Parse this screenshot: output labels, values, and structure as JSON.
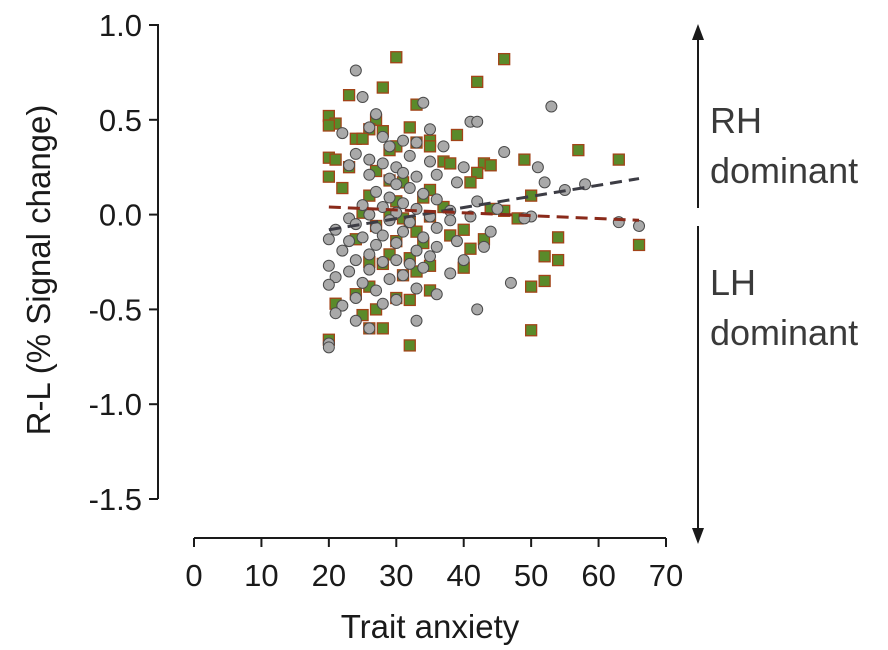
{
  "chart_data": {
    "type": "scatter",
    "title": "",
    "xlabel": "Trait anxiety",
    "ylabel": "R-L (% Signal change)",
    "xlim": [
      0,
      70
    ],
    "ylim": [
      -1.5,
      1.0
    ],
    "xticks": [
      "0",
      "10",
      "20",
      "30",
      "40",
      "50",
      "60",
      "70"
    ],
    "yticks": [
      "1.0",
      "0.5",
      "0.0",
      "-0.5",
      "-1.0",
      "-1.5"
    ],
    "grid": false,
    "annotations": {
      "upper": [
        "RH",
        "dominant"
      ],
      "lower": [
        "LH",
        "dominant"
      ]
    },
    "series": [
      {
        "marker": "circle",
        "color": "#a9a9a9",
        "edge_color": "#4a4a4a",
        "trend": {
          "x": [
            20,
            66
          ],
          "y": [
            -0.08,
            0.19
          ],
          "color": "#3c3c44",
          "style": "dashed"
        },
        "points": [
          [
            24,
            0.76
          ],
          [
            25,
            0.62
          ],
          [
            34,
            0.59
          ],
          [
            53,
            0.57
          ],
          [
            27,
            0.53
          ],
          [
            41,
            0.49
          ],
          [
            42,
            0.49
          ],
          [
            26,
            0.46
          ],
          [
            35,
            0.45
          ],
          [
            22,
            0.43
          ],
          [
            28,
            0.41
          ],
          [
            31,
            0.39
          ],
          [
            33,
            0.38
          ],
          [
            29,
            0.36
          ],
          [
            37,
            0.36
          ],
          [
            46,
            0.33
          ],
          [
            24,
            0.32
          ],
          [
            32,
            0.31
          ],
          [
            26,
            0.29
          ],
          [
            35,
            0.28
          ],
          [
            28,
            0.27
          ],
          [
            23,
            0.26
          ],
          [
            30,
            0.25
          ],
          [
            40,
            0.25
          ],
          [
            51,
            0.25
          ],
          [
            31,
            0.22
          ],
          [
            26,
            0.21
          ],
          [
            36,
            0.21
          ],
          [
            33,
            0.2
          ],
          [
            29,
            0.19
          ],
          [
            39,
            0.17
          ],
          [
            52,
            0.17
          ],
          [
            30,
            0.16
          ],
          [
            58,
            0.16
          ],
          [
            32,
            0.14
          ],
          [
            55,
            0.13
          ],
          [
            27,
            0.12
          ],
          [
            34,
            0.11
          ],
          [
            29,
            0.09
          ],
          [
            36,
            0.08
          ],
          [
            42,
            0.07
          ],
          [
            31,
            0.06
          ],
          [
            25,
            0.05
          ],
          [
            28,
            0.04
          ],
          [
            33,
            0.03
          ],
          [
            45,
            0.03
          ],
          [
            38,
            0.02
          ],
          [
            30,
            0.01
          ],
          [
            26,
            0.0
          ],
          [
            35,
            -0.01
          ],
          [
            41,
            -0.01
          ],
          [
            50,
            -0.01
          ],
          [
            23,
            -0.02
          ],
          [
            49,
            -0.02
          ],
          [
            29,
            -0.03
          ],
          [
            38,
            -0.03
          ],
          [
            32,
            -0.04
          ],
          [
            24,
            -0.05
          ],
          [
            63,
            -0.04
          ],
          [
            66,
            -0.06
          ],
          [
            27,
            -0.07
          ],
          [
            36,
            -0.07
          ],
          [
            21,
            -0.08
          ],
          [
            31,
            -0.09
          ],
          [
            44,
            -0.09
          ],
          [
            28,
            -0.11
          ],
          [
            25,
            -0.12
          ],
          [
            34,
            -0.12
          ],
          [
            20,
            -0.13
          ],
          [
            23,
            -0.14
          ],
          [
            39,
            -0.14
          ],
          [
            30,
            -0.15
          ],
          [
            27,
            -0.16
          ],
          [
            36,
            -0.17
          ],
          [
            43,
            -0.17
          ],
          [
            22,
            -0.19
          ],
          [
            33,
            -0.19
          ],
          [
            26,
            -0.21
          ],
          [
            35,
            -0.22
          ],
          [
            24,
            -0.24
          ],
          [
            30,
            -0.24
          ],
          [
            40,
            -0.24
          ],
          [
            28,
            -0.25
          ],
          [
            32,
            -0.26
          ],
          [
            20,
            -0.27
          ],
          [
            34,
            -0.28
          ],
          [
            26,
            -0.29
          ],
          [
            23,
            -0.3
          ],
          [
            38,
            -0.31
          ],
          [
            31,
            -0.32
          ],
          [
            21,
            -0.33
          ],
          [
            29,
            -0.34
          ],
          [
            25,
            -0.36
          ],
          [
            47,
            -0.36
          ],
          [
            20,
            -0.37
          ],
          [
            33,
            -0.39
          ],
          [
            27,
            -0.4
          ],
          [
            36,
            -0.42
          ],
          [
            24,
            -0.44
          ],
          [
            30,
            -0.45
          ],
          [
            28,
            -0.47
          ],
          [
            22,
            -0.48
          ],
          [
            42,
            -0.5
          ],
          [
            21,
            -0.52
          ],
          [
            24,
            -0.56
          ],
          [
            33,
            -0.56
          ],
          [
            26,
            -0.6
          ],
          [
            20,
            -0.68
          ],
          [
            20,
            -0.7
          ]
        ]
      },
      {
        "marker": "square",
        "color": "#5a8a2a",
        "edge_color": "#a24418",
        "trend": {
          "x": [
            20,
            66
          ],
          "y": [
            0.04,
            -0.03
          ],
          "color": "#8a2a1a",
          "style": "dashed"
        },
        "points": [
          [
            30,
            0.83
          ],
          [
            46,
            0.82
          ],
          [
            42,
            0.7
          ],
          [
            28,
            0.67
          ],
          [
            23,
            0.63
          ],
          [
            33,
            0.58
          ],
          [
            20,
            0.52
          ],
          [
            27,
            0.5
          ],
          [
            21,
            0.48
          ],
          [
            20,
            0.47
          ],
          [
            32,
            0.46
          ],
          [
            26,
            0.45
          ],
          [
            28,
            0.44
          ],
          [
            39,
            0.42
          ],
          [
            24,
            0.4
          ],
          [
            25,
            0.4
          ],
          [
            35,
            0.39
          ],
          [
            33,
            0.38
          ],
          [
            30,
            0.36
          ],
          [
            35,
            0.36
          ],
          [
            57,
            0.34
          ],
          [
            29,
            0.34
          ],
          [
            20,
            0.3
          ],
          [
            21,
            0.29
          ],
          [
            49,
            0.29
          ],
          [
            63,
            0.29
          ],
          [
            37,
            0.28
          ],
          [
            38,
            0.27
          ],
          [
            43,
            0.27
          ],
          [
            44,
            0.26
          ],
          [
            23,
            0.25
          ],
          [
            27,
            0.23
          ],
          [
            42,
            0.22
          ],
          [
            20,
            0.2
          ],
          [
            29,
            0.18
          ],
          [
            31,
            0.17
          ],
          [
            41,
            0.17
          ],
          [
            22,
            0.14
          ],
          [
            35,
            0.13
          ],
          [
            26,
            0.1
          ],
          [
            50,
            0.1
          ],
          [
            34,
            0.09
          ],
          [
            30,
            0.07
          ],
          [
            37,
            0.04
          ],
          [
            44,
            0.03
          ],
          [
            46,
            0.02
          ],
          [
            25,
            0.01
          ],
          [
            29,
            0.0
          ],
          [
            35,
            -0.01
          ],
          [
            31,
            -0.02
          ],
          [
            48,
            -0.02
          ],
          [
            32,
            -0.04
          ],
          [
            27,
            -0.06
          ],
          [
            40,
            -0.08
          ],
          [
            33,
            -0.09
          ],
          [
            38,
            -0.11
          ],
          [
            24,
            -0.13
          ],
          [
            43,
            -0.13
          ],
          [
            30,
            -0.14
          ],
          [
            54,
            -0.12
          ],
          [
            34,
            -0.15
          ],
          [
            66,
            -0.16
          ],
          [
            41,
            -0.18
          ],
          [
            29,
            -0.21
          ],
          [
            52,
            -0.22
          ],
          [
            32,
            -0.23
          ],
          [
            54,
            -0.24
          ],
          [
            26,
            -0.25
          ],
          [
            28,
            -0.26
          ],
          [
            35,
            -0.27
          ],
          [
            40,
            -0.28
          ],
          [
            33,
            -0.3
          ],
          [
            31,
            -0.32
          ],
          [
            52,
            -0.35
          ],
          [
            26,
            -0.38
          ],
          [
            50,
            -0.38
          ],
          [
            35,
            -0.4
          ],
          [
            24,
            -0.42
          ],
          [
            30,
            -0.44
          ],
          [
            32,
            -0.45
          ],
          [
            21,
            -0.47
          ],
          [
            27,
            -0.5
          ],
          [
            25,
            -0.53
          ],
          [
            26,
            -0.6
          ],
          [
            28,
            -0.6
          ],
          [
            50,
            -0.61
          ],
          [
            20,
            -0.66
          ],
          [
            32,
            -0.69
          ]
        ]
      }
    ]
  }
}
